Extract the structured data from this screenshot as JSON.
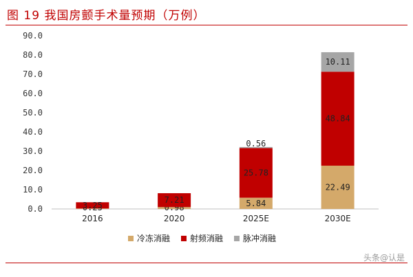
{
  "title": "图 19 我国房颤手术量预期（万例）",
  "watermark": "头条@认是",
  "chart_data": {
    "type": "bar",
    "stacked": true,
    "categories": [
      "2016",
      "2020",
      "2025E",
      "2030E"
    ],
    "ylim": [
      0,
      90
    ],
    "yticks": [
      "0.0",
      "10.0",
      "20.0",
      "30.0",
      "40.0",
      "50.0",
      "60.0",
      "70.0",
      "80.0",
      "90.0"
    ],
    "grid": false,
    "legend_position": "bottom",
    "series": [
      {
        "name": "冷冻消融",
        "color": "#d4a96a",
        "values": [
          0.23,
          0.98,
          5.84,
          22.49
        ],
        "labels": [
          "0.23",
          "0.98",
          "5.84",
          "22.49"
        ]
      },
      {
        "name": "射频消融",
        "color": "#c00000",
        "values": [
          3.25,
          7.21,
          25.78,
          48.84
        ],
        "labels": [
          "3.25",
          "7.21",
          "25.78",
          "48.84"
        ]
      },
      {
        "name": "脉冲消融",
        "color": "#a6a6a6",
        "values": [
          0,
          0,
          0.56,
          10.11
        ],
        "labels": [
          "",
          "",
          "0.56",
          "10.11"
        ]
      }
    ]
  }
}
